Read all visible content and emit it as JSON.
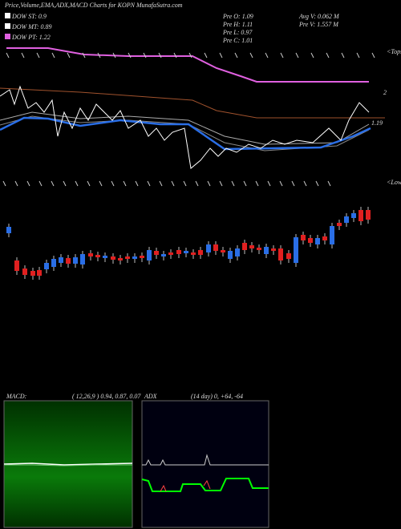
{
  "header": {
    "title": "Price,Volume,EMA,ADX,MACD Charts for KOPN MunafaSutra.com"
  },
  "dow": [
    "DOW ST: 0.9",
    "DOW MT: 0.89",
    "DOW PT: 1.22"
  ],
  "prev": [
    "Pre  O: 1.09",
    "Pre  H: 1.11",
    "Pre  L: 0.97",
    "Pre  C: 1.01"
  ],
  "volume": [
    "Avg V: 0.062  M",
    "Pre  V: 1.557 M"
  ],
  "price_labels": [
    "2",
    "1.19"
  ],
  "markers": [
    "<Tops",
    "<Lows"
  ],
  "macd": {
    "label": "MACD:",
    "params": "( 12,26,9 ) 0.94, 0.87, 0.07"
  },
  "adx": {
    "label": "ADX",
    "params": "(14  day) 0, +64, -64"
  }
}
